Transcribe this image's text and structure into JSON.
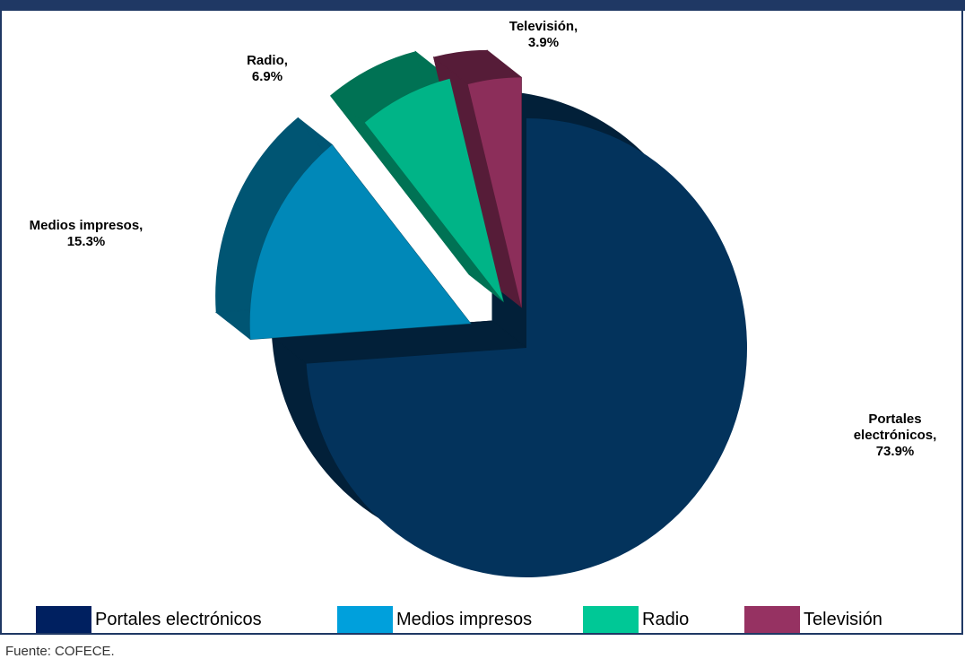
{
  "chart_data": {
    "type": "pie",
    "style": "3d-exploded",
    "title": "",
    "categories": [
      "Portales electrónicos",
      "Medios impresos",
      "Radio",
      "Televisión"
    ],
    "values": [
      73.9,
      15.3,
      6.9,
      3.9
    ],
    "unit": "%",
    "slice_labels": [
      {
        "lines": [
          "Portales",
          "electrónicos,",
          "73.9%"
        ]
      },
      {
        "lines": [
          "Medios impresos,",
          "15.3%"
        ]
      },
      {
        "lines": [
          "Radio,",
          "6.9%"
        ]
      },
      {
        "lines": [
          "Televisión,",
          "3.9%"
        ]
      }
    ],
    "colors": {
      "top": [
        "#03335c",
        "#0088b8",
        "#00b487",
        "#8c2e5a"
      ],
      "side": [
        "#022039",
        "#005573",
        "#007254",
        "#561c38"
      ],
      "legend": [
        "#002060",
        "#00a0dc",
        "#00c896",
        "#963262"
      ]
    },
    "legend_position": "bottom",
    "legend": [
      "Portales electrónicos",
      "Medios impresos",
      "Radio",
      "Televisión"
    ]
  },
  "source": "Fuente: COFECE."
}
